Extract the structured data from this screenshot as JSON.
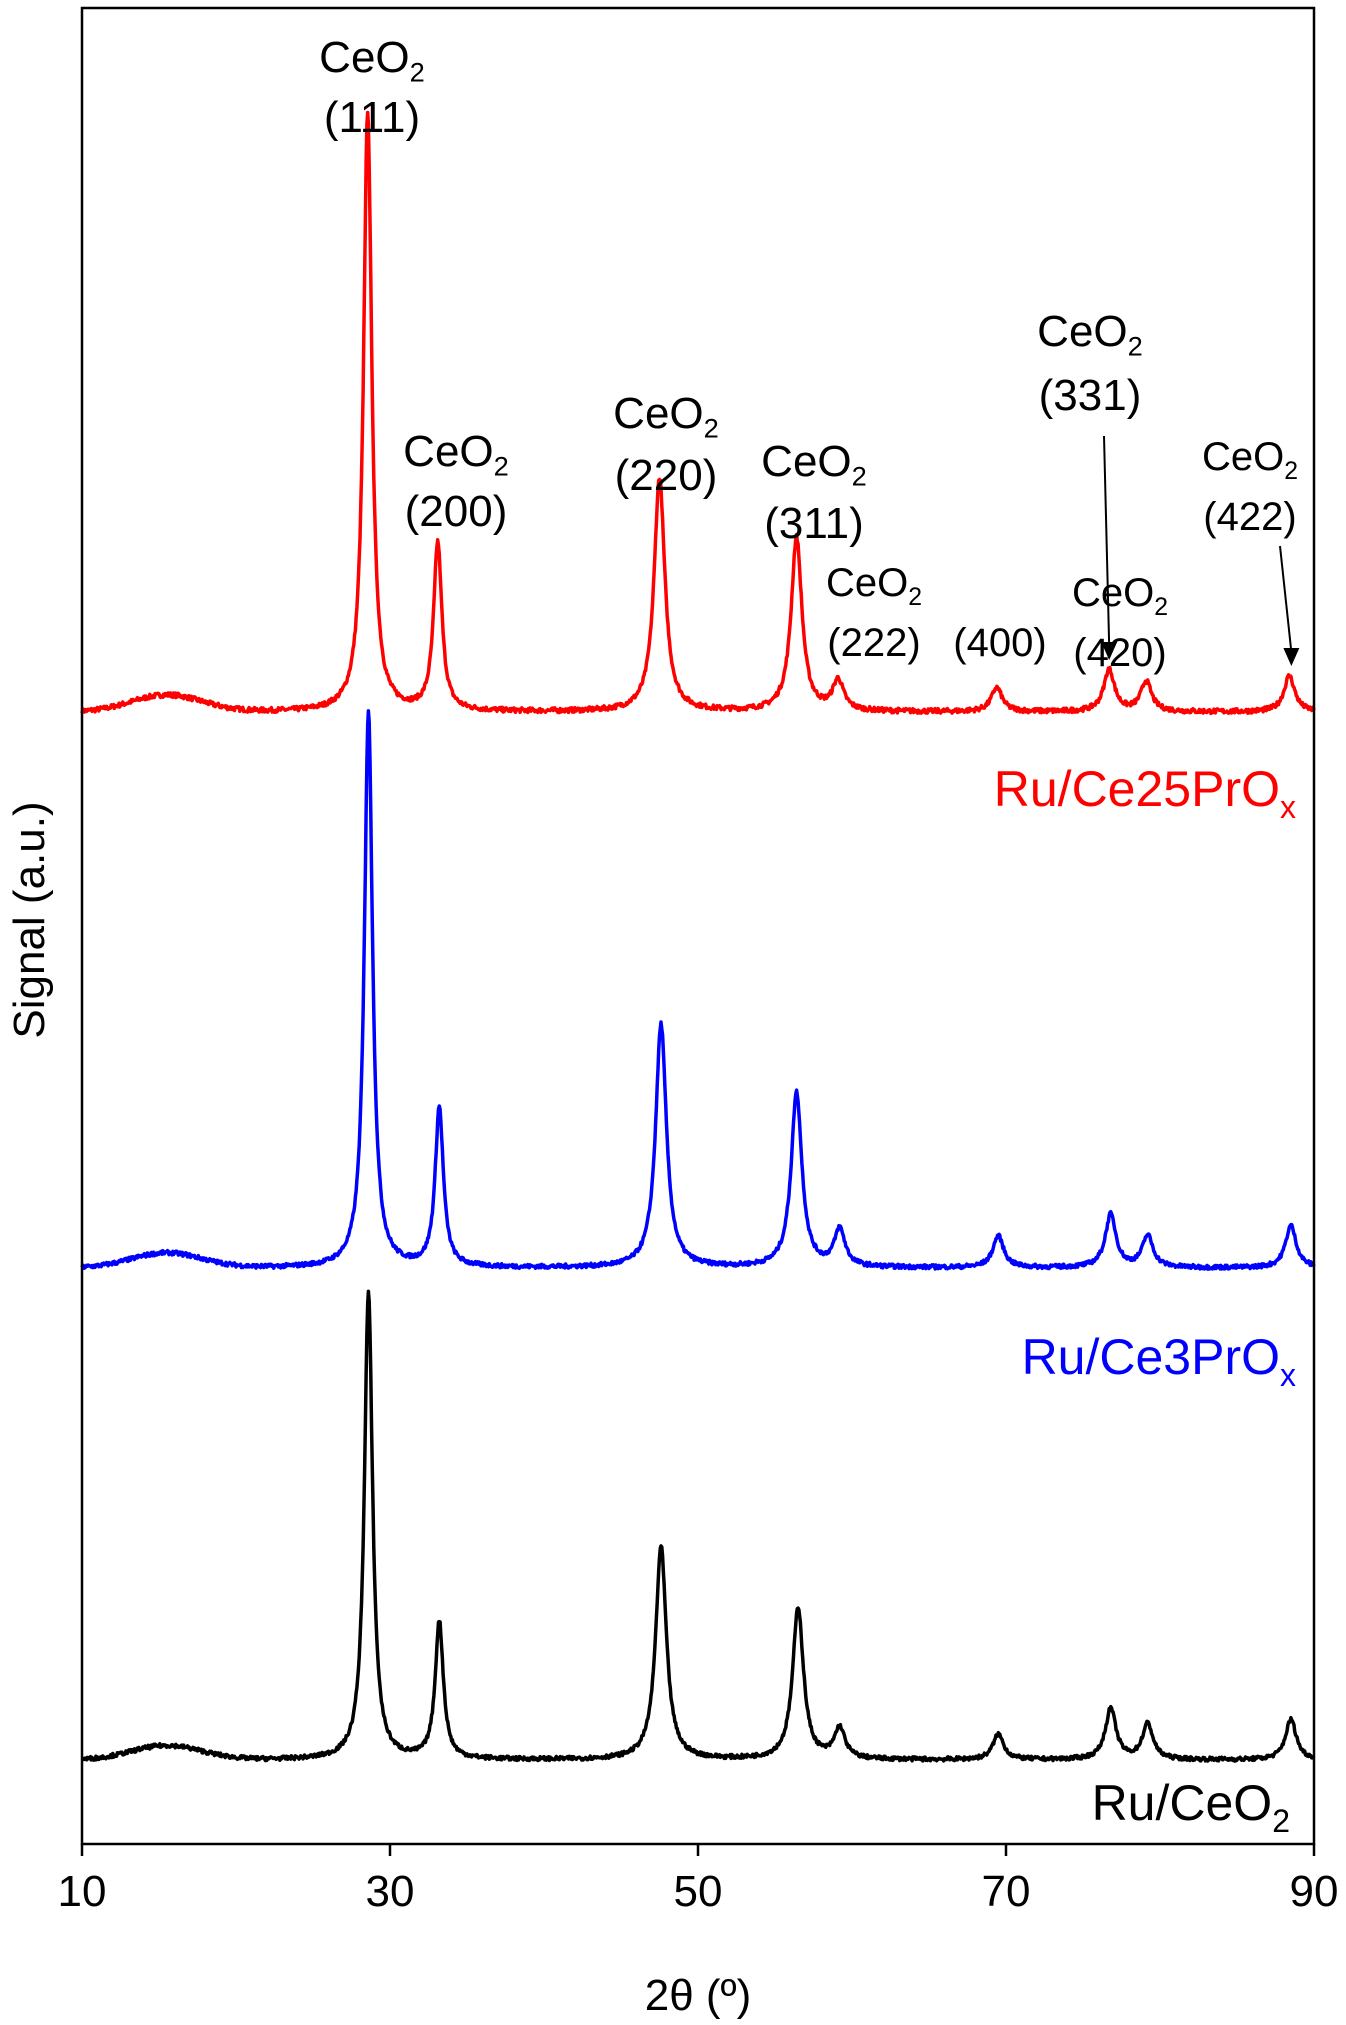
{
  "chart_data": {
    "type": "line",
    "title": "",
    "xlabel": "2θ (º)",
    "ylabel": "Signal (a.u.)",
    "xlim": [
      10,
      90
    ],
    "ylim": [
      0,
      3.3
    ],
    "x_ticks": [
      10,
      30,
      50,
      70,
      90
    ],
    "x_tick_labels": [
      "10",
      "30",
      "50",
      "70",
      "90"
    ],
    "y_ticks_shown": false,
    "grid": false,
    "series": [
      {
        "name": "Ru/Ce25PrOx",
        "label_main": "Ru/Ce25PrO",
        "label_sub": "x",
        "color": "#ff0000",
        "offset": 2.2,
        "peaks": [
          [
            28.55,
            1.0
          ],
          [
            33.1,
            0.28
          ],
          [
            47.5,
            0.39
          ],
          [
            56.4,
            0.29
          ],
          [
            59.1,
            0.05
          ],
          [
            69.4,
            0.04
          ],
          [
            76.7,
            0.07
          ],
          [
            79.1,
            0.05
          ],
          [
            88.4,
            0.06
          ]
        ]
      },
      {
        "name": "Ru/Ce3PrOx",
        "label_main": "Ru/Ce3PrO",
        "label_sub": "x",
        "color": "#0000ff",
        "offset": 1.1,
        "peaks": [
          [
            28.6,
            1.05
          ],
          [
            33.2,
            0.3
          ],
          [
            47.6,
            0.46
          ],
          [
            56.4,
            0.33
          ],
          [
            59.2,
            0.07
          ],
          [
            69.5,
            0.06
          ],
          [
            76.8,
            0.1
          ],
          [
            79.2,
            0.06
          ],
          [
            88.5,
            0.08
          ]
        ]
      },
      {
        "name": "Ru/CeO2",
        "label_main": "Ru/CeO",
        "label_sub": "2",
        "color": "#000000",
        "offset": 0.0,
        "peaks": [
          [
            28.6,
            0.92
          ],
          [
            33.2,
            0.27
          ],
          [
            47.6,
            0.42
          ],
          [
            56.5,
            0.3
          ],
          [
            59.2,
            0.06
          ],
          [
            69.5,
            0.05
          ],
          [
            76.8,
            0.1
          ],
          [
            79.2,
            0.07
          ],
          [
            88.5,
            0.08
          ]
        ]
      }
    ],
    "annotations": [
      {
        "main": "CeO",
        "sub": "2",
        "hkl": "(111)",
        "x": 28.55
      },
      {
        "main": "CeO",
        "sub": "2",
        "hkl": "(200)",
        "x": 33.1
      },
      {
        "main": "CeO",
        "sub": "2",
        "hkl": "(220)",
        "x": 47.5
      },
      {
        "main": "CeO",
        "sub": "2",
        "hkl": "(311)",
        "x": 56.4
      },
      {
        "main": "CeO",
        "sub": "2",
        "hkl": "(222)",
        "x": 59.1
      },
      {
        "main": "CeO",
        "sub": "2",
        "hkl": "(400)",
        "x": 69.4
      },
      {
        "main": "CeO",
        "sub": "2",
        "hkl": "(331)",
        "x": 76.7
      },
      {
        "main": "CeO",
        "sub": "2",
        "hkl": "(420)",
        "x": 79.1
      },
      {
        "main": "CeO",
        "sub": "2",
        "hkl": "(422)",
        "x": 88.4
      }
    ]
  }
}
